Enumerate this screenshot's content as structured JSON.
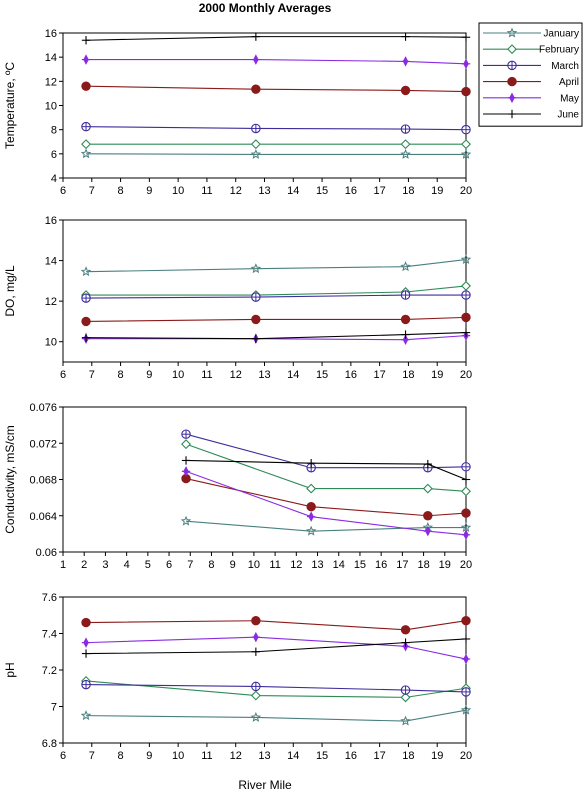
{
  "title": "2000 Monthly Averages",
  "xlabel": "River Mile",
  "legend": {
    "placement": "top-right",
    "entries": [
      {
        "name": "January",
        "color": "#4a7f7f",
        "marker": "star"
      },
      {
        "name": "February",
        "color": "#2e8b57",
        "marker": "diamond"
      },
      {
        "name": "March",
        "color": "#3c2d9b",
        "marker": "circle-cross"
      },
      {
        "name": "April",
        "color": "#8b1a1a",
        "marker": "filled-circle"
      },
      {
        "name": "May",
        "color": "#8a2be2",
        "marker": "plus-diamond"
      },
      {
        "name": "June",
        "color": "#000000",
        "marker": "plus"
      }
    ]
  },
  "chart_data": [
    {
      "type": "line",
      "ylabel": "Temperature, ºC",
      "xlim": [
        6,
        20
      ],
      "ylim": [
        4,
        16
      ],
      "xticks": [
        6,
        7,
        8,
        9,
        10,
        11,
        12,
        13,
        14,
        15,
        16,
        17,
        18,
        19,
        20
      ],
      "yticks": [
        4,
        6,
        8,
        10,
        12,
        14,
        16
      ],
      "series": [
        {
          "name": "January",
          "x": [
            6.8,
            12.7,
            17.9,
            20
          ],
          "y": [
            6.0,
            5.95,
            5.95,
            5.95
          ]
        },
        {
          "name": "February",
          "x": [
            6.8,
            12.7,
            17.9,
            20
          ],
          "y": [
            6.8,
            6.8,
            6.8,
            6.8
          ]
        },
        {
          "name": "March",
          "x": [
            6.8,
            12.7,
            17.9,
            20
          ],
          "y": [
            8.25,
            8.1,
            8.05,
            8.0
          ]
        },
        {
          "name": "April",
          "x": [
            6.8,
            12.7,
            17.9,
            20
          ],
          "y": [
            11.6,
            11.35,
            11.25,
            11.15
          ]
        },
        {
          "name": "May",
          "x": [
            6.8,
            12.7,
            17.9,
            20
          ],
          "y": [
            13.8,
            13.8,
            13.65,
            13.45
          ]
        },
        {
          "name": "June",
          "x": [
            6.8,
            12.7,
            17.9,
            20
          ],
          "y": [
            15.4,
            15.7,
            15.7,
            15.65
          ]
        }
      ]
    },
    {
      "type": "line",
      "ylabel": "DO, mg/L",
      "xlim": [
        6,
        20
      ],
      "ylim": [
        9,
        16
      ],
      "xticks": [
        6,
        7,
        8,
        9,
        10,
        11,
        12,
        13,
        14,
        15,
        16,
        17,
        18,
        19,
        20
      ],
      "yticks": [
        10,
        12,
        14,
        16
      ],
      "series": [
        {
          "name": "January",
          "x": [
            6.8,
            12.7,
            17.9,
            20
          ],
          "y": [
            13.45,
            13.6,
            13.7,
            14.05
          ]
        },
        {
          "name": "February",
          "x": [
            6.8,
            12.7,
            17.9,
            20
          ],
          "y": [
            12.3,
            12.3,
            12.45,
            12.75
          ]
        },
        {
          "name": "March",
          "x": [
            6.8,
            12.7,
            17.9,
            20
          ],
          "y": [
            12.15,
            12.2,
            12.3,
            12.3
          ]
        },
        {
          "name": "April",
          "x": [
            6.8,
            12.7,
            17.9,
            20
          ],
          "y": [
            11.0,
            11.1,
            11.1,
            11.2
          ]
        },
        {
          "name": "May",
          "x": [
            6.8,
            12.7,
            17.9,
            20
          ],
          "y": [
            10.15,
            10.15,
            10.1,
            10.3
          ]
        },
        {
          "name": "June",
          "x": [
            6.8,
            12.7,
            17.9,
            20
          ],
          "y": [
            10.2,
            10.15,
            10.35,
            10.45
          ]
        }
      ]
    },
    {
      "type": "line",
      "ylabel": "Conductivity, mS/cm",
      "xlim": [
        1,
        20
      ],
      "ylim": [
        0.06,
        0.076
      ],
      "xticks": [
        1,
        2,
        3,
        4,
        5,
        6,
        7,
        8,
        9,
        10,
        11,
        12,
        13,
        14,
        15,
        16,
        17,
        18,
        19,
        20
      ],
      "yticks": [
        0.06,
        0.064,
        0.068,
        0.072,
        0.076
      ],
      "ytick_labels": [
        "0.06",
        "0.064",
        "0.068",
        "0.072",
        "0.076"
      ],
      "series": [
        {
          "name": "January",
          "x": [
            6.8,
            12.7,
            18.2,
            20
          ],
          "y": [
            0.0634,
            0.0623,
            0.0627,
            0.0627
          ]
        },
        {
          "name": "February",
          "x": [
            6.8,
            12.7,
            18.2,
            20
          ],
          "y": [
            0.0719,
            0.067,
            0.067,
            0.0667
          ]
        },
        {
          "name": "March",
          "x": [
            6.8,
            12.7,
            18.2,
            20
          ],
          "y": [
            0.073,
            0.0693,
            0.0693,
            0.0694
          ]
        },
        {
          "name": "April",
          "x": [
            6.8,
            12.7,
            18.2,
            20
          ],
          "y": [
            0.0681,
            0.065,
            0.064,
            0.0643
          ]
        },
        {
          "name": "May",
          "x": [
            6.8,
            12.7,
            18.2,
            20
          ],
          "y": [
            0.0689,
            0.0639,
            0.0623,
            0.0619
          ]
        },
        {
          "name": "June",
          "x": [
            6.8,
            12.7,
            18.2,
            20
          ],
          "y": [
            0.0701,
            0.0698,
            0.0697,
            0.068
          ]
        }
      ]
    },
    {
      "type": "line",
      "ylabel": "pH",
      "xlim": [
        6,
        20
      ],
      "ylim": [
        6.8,
        7.6
      ],
      "xticks": [
        6,
        7,
        8,
        9,
        10,
        11,
        12,
        13,
        14,
        15,
        16,
        17,
        18,
        19,
        20
      ],
      "yticks": [
        6.8,
        7,
        7.2,
        7.4,
        7.6
      ],
      "ytick_labels": [
        "6.8",
        "7",
        "7.2",
        "7.4",
        "7.6"
      ],
      "series": [
        {
          "name": "January",
          "x": [
            6.8,
            12.7,
            17.9,
            20
          ],
          "y": [
            6.95,
            6.94,
            6.92,
            6.98
          ]
        },
        {
          "name": "February",
          "x": [
            6.8,
            12.7,
            17.9,
            20
          ],
          "y": [
            7.14,
            7.06,
            7.05,
            7.1
          ]
        },
        {
          "name": "March",
          "x": [
            6.8,
            12.7,
            17.9,
            20
          ],
          "y": [
            7.12,
            7.11,
            7.09,
            7.08
          ]
        },
        {
          "name": "April",
          "x": [
            6.8,
            12.7,
            17.9,
            20
          ],
          "y": [
            7.46,
            7.47,
            7.42,
            7.47
          ]
        },
        {
          "name": "May",
          "x": [
            6.8,
            12.7,
            17.9,
            20
          ],
          "y": [
            7.35,
            7.38,
            7.33,
            7.26
          ]
        },
        {
          "name": "June",
          "x": [
            6.8,
            12.7,
            17.9,
            20
          ],
          "y": [
            7.29,
            7.3,
            7.35,
            7.37
          ]
        }
      ]
    }
  ]
}
